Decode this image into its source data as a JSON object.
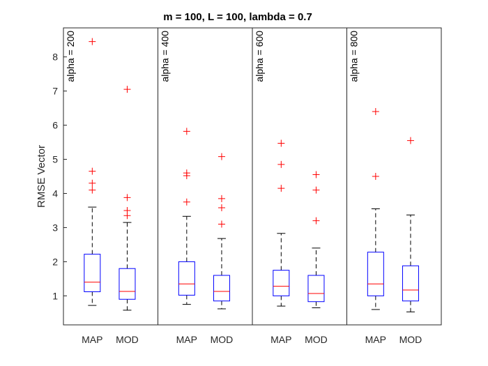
{
  "chart_data": {
    "type": "box",
    "title": "m = 100, L = 100, lambda = 0.7",
    "xlabel": "",
    "ylabel": "RMSE Vector",
    "ylim": [
      0.15,
      8.85
    ],
    "yticks": [
      "1",
      "2",
      "3",
      "4",
      "5",
      "6",
      "7",
      "8"
    ],
    "ytick_values": [
      1,
      2,
      3,
      4,
      5,
      6,
      7,
      8
    ],
    "categories": [
      "MAP",
      "MOD"
    ],
    "grid": false,
    "colors": {
      "box": "#0000ff",
      "median": "#ff0000",
      "outlier": "#ff0000",
      "whisker": "#000000"
    },
    "panels": [
      {
        "label": "alpha = 200",
        "groups": [
          {
            "name": "MAP",
            "min": 0.72,
            "q1": 1.12,
            "median": 1.4,
            "q3": 2.22,
            "max": 3.6,
            "outliers": [
              4.1,
              4.3,
              4.65,
              8.45
            ]
          },
          {
            "name": "MOD",
            "min": 0.58,
            "q1": 0.9,
            "median": 1.13,
            "q3": 1.8,
            "max": 3.15,
            "outliers": [
              3.35,
              3.5,
              3.88,
              7.05
            ]
          }
        ]
      },
      {
        "label": "alpha = 400",
        "groups": [
          {
            "name": "MAP",
            "min": 0.75,
            "q1": 1.02,
            "median": 1.35,
            "q3": 2.0,
            "max": 3.33,
            "outliers": [
              3.75,
              4.52,
              4.6,
              5.82
            ]
          },
          {
            "name": "MOD",
            "min": 0.62,
            "q1": 0.85,
            "median": 1.13,
            "q3": 1.6,
            "max": 2.68,
            "outliers": [
              3.1,
              3.58,
              3.85,
              5.08
            ]
          }
        ]
      },
      {
        "label": "alpha = 600",
        "groups": [
          {
            "name": "MAP",
            "min": 0.7,
            "q1": 1.0,
            "median": 1.28,
            "q3": 1.75,
            "max": 2.83,
            "outliers": [
              4.15,
              4.85,
              5.47
            ]
          },
          {
            "name": "MOD",
            "min": 0.65,
            "q1": 0.83,
            "median": 1.07,
            "q3": 1.6,
            "max": 2.4,
            "outliers": [
              3.2,
              4.1,
              4.55
            ]
          }
        ]
      },
      {
        "label": "alpha = 800",
        "groups": [
          {
            "name": "MAP",
            "min": 0.6,
            "q1": 1.0,
            "median": 1.35,
            "q3": 2.28,
            "max": 3.55,
            "outliers": [
              4.5,
              6.4
            ]
          },
          {
            "name": "MOD",
            "min": 0.53,
            "q1": 0.85,
            "median": 1.17,
            "q3": 1.88,
            "max": 3.37,
            "outliers": [
              5.55
            ]
          }
        ]
      }
    ]
  }
}
